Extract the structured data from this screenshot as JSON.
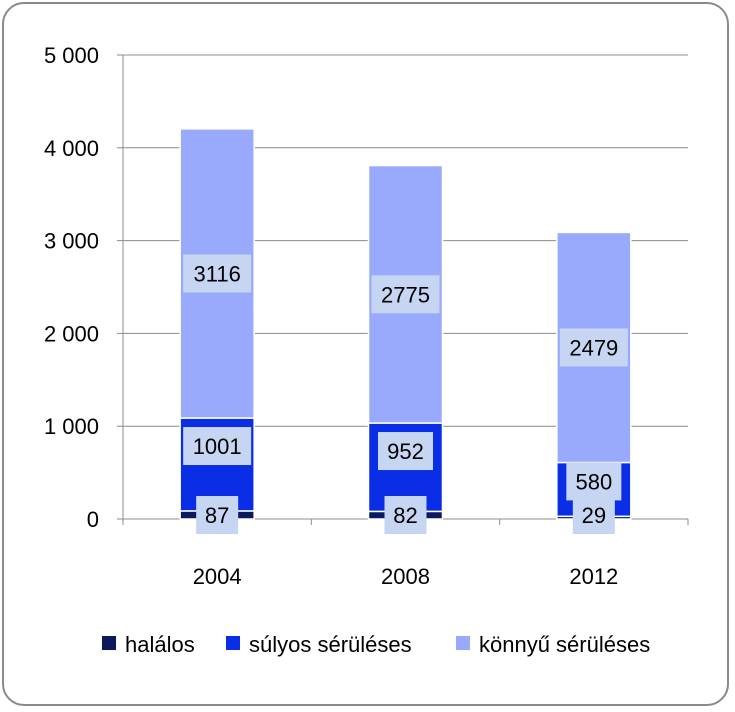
{
  "chart_data": {
    "type": "bar",
    "stacked": true,
    "categories": [
      "2004",
      "2008",
      "2012"
    ],
    "series": [
      {
        "name": "halálos",
        "values": [
          87,
          82,
          29
        ],
        "color": "#0b1a5c"
      },
      {
        "name": "súlyos sérüléses",
        "values": [
          1001,
          952,
          580
        ],
        "color": "#0a2ee6"
      },
      {
        "name": "könnyű sérüléses",
        "values": [
          3116,
          2775,
          2479
        ],
        "color": "#99aafc"
      }
    ],
    "y_ticks": [
      "0",
      "1 000",
      "2 000",
      "3 000",
      "4 000",
      "5 000"
    ],
    "ylim": [
      0,
      5000
    ],
    "grid": true,
    "legend_position": "bottom",
    "label_box_color": "#c5d5f2"
  }
}
